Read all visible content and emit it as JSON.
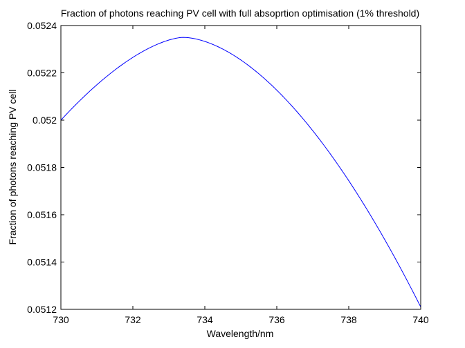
{
  "chart_data": {
    "type": "line",
    "title": "Fraction of photons reaching PV cell with full absoprtion optimisation (1% threshold)",
    "xlabel": "Wavelength/nm",
    "ylabel": "Fraction of photons reaching PV cell",
    "xlim": [
      730,
      740
    ],
    "ylim": [
      0.0512,
      0.0524
    ],
    "xticks": [
      730,
      732,
      734,
      736,
      738,
      740
    ],
    "xtick_labels": [
      "730",
      "732",
      "734",
      "736",
      "738",
      "740"
    ],
    "yticks": [
      0.0512,
      0.0514,
      0.0516,
      0.0518,
      0.052,
      0.0522,
      0.0524
    ],
    "ytick_labels": [
      "0.0512",
      "0.0514",
      "0.0516",
      "0.0518",
      "0.052",
      "0.0522",
      "0.0524"
    ],
    "grid": false,
    "line_color": "#0000ff",
    "series": [
      {
        "name": "fraction",
        "x": [
          730.0,
          730.1,
          730.2,
          730.3,
          730.4,
          730.5,
          730.6,
          730.7,
          730.8,
          730.9,
          731.0,
          731.1,
          731.2,
          731.3,
          731.4,
          731.5,
          731.6,
          731.7,
          731.8,
          731.9,
          732.0,
          732.1,
          732.2,
          732.3,
          732.4,
          732.5,
          732.6,
          732.7,
          732.8,
          732.9,
          733.0,
          733.1,
          733.2,
          733.3,
          733.4,
          733.5,
          733.6,
          733.7,
          733.8,
          733.9,
          734.0,
          734.2,
          734.4,
          734.6,
          734.8,
          735.0,
          735.2,
          735.4,
          735.6,
          735.8,
          736.0,
          736.2,
          736.4,
          736.6,
          736.8,
          737.0,
          737.2,
          737.4,
          737.6,
          737.8,
          738.0,
          738.2,
          738.4,
          738.6,
          738.8,
          739.0,
          739.2,
          739.4,
          739.6,
          739.8,
          740.0
        ],
        "y": [
          0.052,
          0.05203,
          0.05206,
          0.05207,
          0.05209,
          0.05211,
          0.05213,
          0.05215,
          0.05216,
          0.05217,
          0.05219,
          0.0522,
          0.05221,
          0.05223,
          0.05224,
          0.05225,
          0.05226,
          0.05227,
          0.05228,
          0.05229,
          0.05229,
          0.0523,
          0.05231,
          0.05231,
          0.05232,
          0.05232,
          0.05233,
          0.05233,
          0.05234,
          0.05234,
          0.05235,
          0.05235,
          0.05235,
          0.05235,
          0.05235,
          0.05235,
          0.05235,
          0.05235,
          0.05235,
          0.05235,
          0.05234,
          0.05233,
          0.05232,
          0.0523,
          0.05228,
          0.05226,
          0.05223,
          0.0522,
          0.05216,
          0.05212,
          0.05207,
          0.05202,
          0.05196,
          0.0519,
          0.05184,
          0.05178,
          0.05171,
          0.05164,
          0.05157,
          0.0515,
          0.05182,
          0.05175,
          0.05167,
          0.0516,
          0.05152,
          0.05145,
          0.05138,
          0.05131,
          0.05124,
          0.05121,
          0.05121
        ]
      }
    ]
  }
}
